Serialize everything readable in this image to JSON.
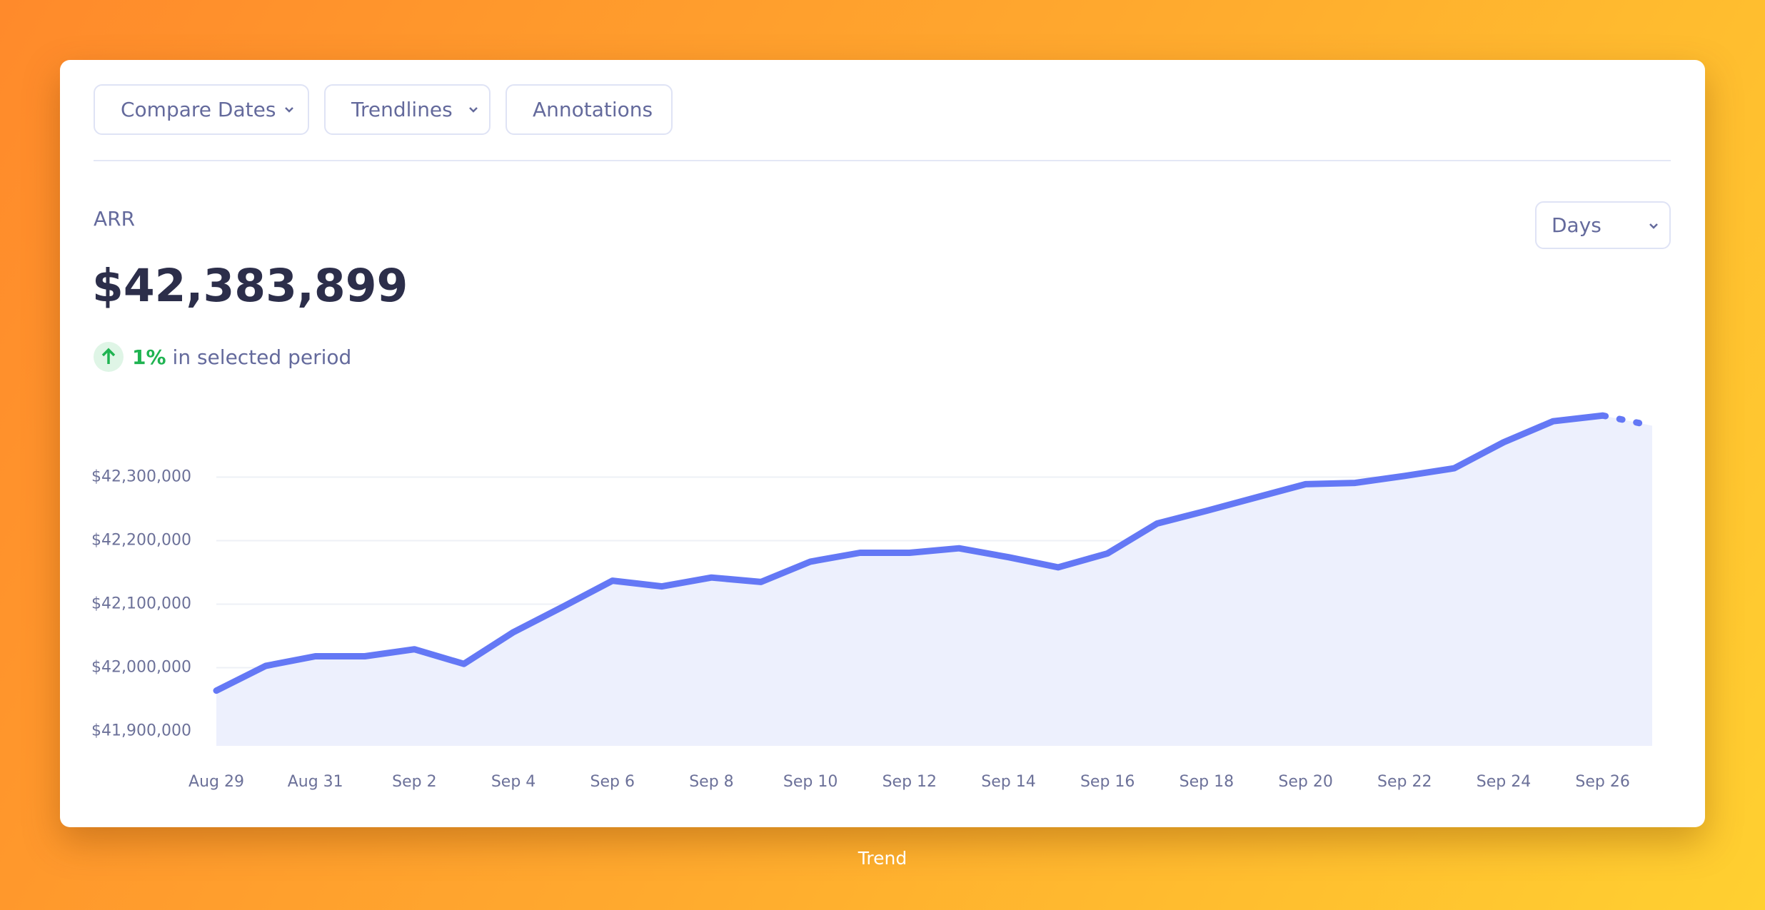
{
  "toolbar": {
    "buttons": [
      "Compare Dates",
      "Trendlines",
      "Annotations"
    ]
  },
  "granularity": "Days",
  "caption": "Trend",
  "chart_data": {
    "type": "line",
    "title": "ARR",
    "headline": "$42,383,899",
    "change": "1%",
    "change_text": "in selected period",
    "color": "#6478f5",
    "area_color": "#edf0fd",
    "grid": true,
    "dashed_from_index": 28,
    "categories": [
      "Aug 29",
      null,
      "Aug 31",
      null,
      "Sep 2",
      null,
      "Sep 4",
      null,
      "Sep 6",
      null,
      "Sep 8",
      null,
      "Sep 10",
      null,
      "Sep 12",
      null,
      "Sep 14",
      null,
      "Sep 16",
      null,
      "Sep 18",
      null,
      "Sep 20",
      null,
      "Sep 22",
      null,
      "Sep 24",
      null,
      "Sep 26",
      null
    ],
    "values": [
      41964000,
      42003000,
      42018000,
      42018000,
      42029000,
      42006000,
      42056000,
      42096000,
      42137000,
      42128000,
      42142000,
      42135000,
      42167000,
      42181000,
      42181000,
      42188000,
      42174000,
      42158000,
      42180000,
      42227000,
      42247000,
      42268000,
      42289000,
      42291000,
      42302000,
      42314000,
      42355000,
      42388000,
      42397000,
      42381000
    ],
    "ylim": [
      41877000,
      42413000
    ],
    "yticks": [
      {
        "value": 41900000,
        "label": "$41,900,000"
      },
      {
        "value": 42000000,
        "label": "$42,000,000"
      },
      {
        "value": 42100000,
        "label": "$42,100,000"
      },
      {
        "value": 42200000,
        "label": "$42,200,000"
      },
      {
        "value": 42300000,
        "label": "$42,300,000"
      }
    ]
  }
}
